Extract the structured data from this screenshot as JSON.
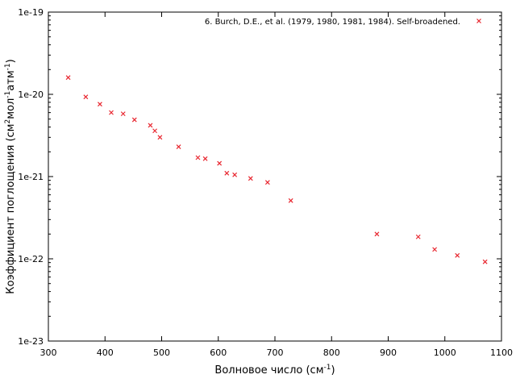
{
  "chart_data": {
    "type": "scatter",
    "xlabel": "Волновое число (см",
    "xlabel_sup": "-1",
    "xlabel_end": ")",
    "ylabel_parts": {
      "a": "Коэффициент поглощения (см",
      "sup1": "2",
      "b": "мол",
      "sup2": "-1",
      "c": "атм",
      "sup3": "-1",
      "d": ")"
    },
    "x_ticks": [
      "300",
      "400",
      "500",
      "600",
      "700",
      "800",
      "900",
      "1000",
      "1100"
    ],
    "y_ticks": [
      "1e-23",
      "1e-22",
      "1e-21",
      "1e-20",
      "1e-19"
    ],
    "xlim": [
      300,
      1100
    ],
    "ylim": [
      1e-23,
      1e-19
    ],
    "y_scale": "log",
    "grid": false,
    "legend_position": "top-right",
    "series": [
      {
        "name": "6. Burch, D.E., et al. (1979, 1980, 1981, 1984). Self-broadened.",
        "color": "#e8262f",
        "marker": "x",
        "points": [
          [
            335,
            1.6e-20
          ],
          [
            366,
            9.3e-21
          ],
          [
            391,
            7.6e-21
          ],
          [
            411,
            6e-21
          ],
          [
            432,
            5.8e-21
          ],
          [
            452,
            4.9e-21
          ],
          [
            480,
            4.2e-21
          ],
          [
            488,
            3.6e-21
          ],
          [
            497,
            3e-21
          ],
          [
            530,
            2.3e-21
          ],
          [
            564,
            1.7e-21
          ],
          [
            577,
            1.65e-21
          ],
          [
            602,
            1.45e-21
          ],
          [
            615,
            1.1e-21
          ],
          [
            629,
            1.05e-21
          ],
          [
            657,
            9.5e-22
          ],
          [
            687,
            8.5e-22
          ],
          [
            728,
            5.1e-22
          ],
          [
            880,
            2e-22
          ],
          [
            953,
            1.85e-22
          ],
          [
            982,
            1.3e-22
          ],
          [
            1022,
            1.1e-22
          ],
          [
            1071,
            9.2e-23
          ]
        ]
      }
    ]
  }
}
